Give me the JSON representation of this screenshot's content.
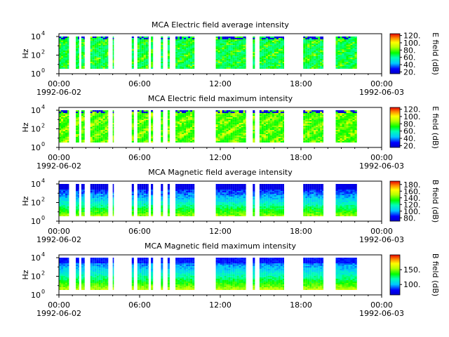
{
  "chart_data": [
    {
      "type": "heatmap",
      "title": "MCA  Electric field average intensity",
      "ylabel": "Hz",
      "yscale": "log",
      "ylim": [
        1,
        20000
      ],
      "y_ticks": [
        "10^0",
        "10^2",
        "10^4"
      ],
      "x_ticks": [
        "00:00",
        "06:00",
        "12:00",
        "18:00",
        "00:00"
      ],
      "x_dates": {
        "start": "1992-06-02",
        "end": "1992-06-03"
      },
      "xlim": [
        "1992-06-02T00:00",
        "1992-06-03T00:00"
      ],
      "colorbar": {
        "label": "E field (dB)",
        "range": [
          15,
          125
        ],
        "ticks": [
          20,
          40,
          60,
          80,
          100,
          120
        ],
        "tick_labels": [
          "20.",
          "40.",
          "60.",
          "80.",
          "100.",
          "120."
        ]
      },
      "colormap": "rainbow",
      "data_intervals": [
        [
          "00:00",
          "00:45"
        ],
        [
          "01:15",
          "01:30"
        ],
        [
          "01:40",
          "01:55"
        ],
        [
          "02:20",
          "03:40"
        ],
        [
          "04:00",
          "04:05"
        ],
        [
          "05:25",
          "05:35"
        ],
        [
          "05:50",
          "06:40"
        ],
        [
          "06:50",
          "07:00"
        ],
        [
          "07:35",
          "07:45"
        ],
        [
          "08:05",
          "08:15"
        ],
        [
          "08:40",
          "10:05"
        ],
        [
          "11:40",
          "13:55"
        ],
        [
          "14:25",
          "14:35"
        ],
        [
          "14:55",
          "16:45"
        ],
        [
          "18:10",
          "19:40"
        ],
        [
          "20:35",
          "22:10"
        ]
      ],
      "typical_level_db": [
        45,
        90
      ]
    },
    {
      "type": "heatmap",
      "title": "MCA  Electric field maximum intensity",
      "ylabel": "Hz",
      "yscale": "log",
      "ylim": [
        1,
        20000
      ],
      "y_ticks": [
        "10^0",
        "10^2",
        "10^4"
      ],
      "x_ticks": [
        "00:00",
        "06:00",
        "12:00",
        "18:00",
        "00:00"
      ],
      "x_dates": {
        "start": "1992-06-02",
        "end": "1992-06-03"
      },
      "xlim": [
        "1992-06-02T00:00",
        "1992-06-03T00:00"
      ],
      "colorbar": {
        "label": "E field (dB)",
        "range": [
          15,
          125
        ],
        "ticks": [
          20,
          40,
          60,
          80,
          100,
          120
        ],
        "tick_labels": [
          "20.",
          "40.",
          "60.",
          "80.",
          "100.",
          "120."
        ]
      },
      "colormap": "rainbow",
      "data_intervals": [
        [
          "00:00",
          "00:45"
        ],
        [
          "01:15",
          "01:30"
        ],
        [
          "01:40",
          "01:55"
        ],
        [
          "02:20",
          "03:40"
        ],
        [
          "04:00",
          "04:05"
        ],
        [
          "05:25",
          "05:35"
        ],
        [
          "05:50",
          "06:40"
        ],
        [
          "06:50",
          "07:00"
        ],
        [
          "07:35",
          "07:45"
        ],
        [
          "08:05",
          "08:15"
        ],
        [
          "08:40",
          "10:05"
        ],
        [
          "11:40",
          "13:55"
        ],
        [
          "14:25",
          "14:35"
        ],
        [
          "14:55",
          "16:45"
        ],
        [
          "18:10",
          "19:40"
        ],
        [
          "20:35",
          "22:10"
        ]
      ],
      "typical_level_db": [
        55,
        100
      ]
    },
    {
      "type": "heatmap",
      "title": "MCA  Magnetic field average intensity",
      "ylabel": "Hz",
      "yscale": "log",
      "ylim": [
        1,
        20000
      ],
      "y_ticks": [
        "10^0",
        "10^2",
        "10^4"
      ],
      "x_ticks": [
        "00:00",
        "06:00",
        "12:00",
        "18:00",
        "00:00"
      ],
      "x_dates": {
        "start": "1992-06-02",
        "end": "1992-06-03"
      },
      "xlim": [
        "1992-06-02T00:00",
        "1992-06-03T00:00"
      ],
      "colorbar": {
        "label": "B field (dB)",
        "range": [
          70,
          190
        ],
        "ticks": [
          80,
          100,
          120,
          140,
          160,
          180
        ],
        "tick_labels": [
          "80.",
          "100.",
          "120.",
          "140.",
          "160.",
          "180."
        ]
      },
      "colormap": "rainbow",
      "data_intervals": [
        [
          "00:00",
          "00:45"
        ],
        [
          "01:15",
          "01:30"
        ],
        [
          "01:40",
          "01:55"
        ],
        [
          "02:20",
          "03:40"
        ],
        [
          "04:00",
          "04:05"
        ],
        [
          "05:25",
          "05:35"
        ],
        [
          "05:50",
          "06:40"
        ],
        [
          "06:50",
          "07:00"
        ],
        [
          "07:35",
          "07:45"
        ],
        [
          "08:05",
          "08:15"
        ],
        [
          "08:40",
          "10:05"
        ],
        [
          "11:40",
          "13:55"
        ],
        [
          "14:25",
          "14:35"
        ],
        [
          "14:55",
          "16:45"
        ],
        [
          "18:10",
          "19:40"
        ],
        [
          "20:35",
          "22:10"
        ]
      ],
      "typical_level_db": [
        80,
        150
      ]
    },
    {
      "type": "heatmap",
      "title": "MCA  Magnetic field maximum intensity",
      "ylabel": "Hz",
      "yscale": "log",
      "ylim": [
        1,
        20000
      ],
      "y_ticks": [
        "10^0",
        "10^2",
        "10^4"
      ],
      "x_ticks": [
        "00:00",
        "06:00",
        "12:00",
        "18:00",
        "00:00"
      ],
      "x_dates": {
        "start": "1992-06-02",
        "end": "1992-06-03"
      },
      "xlim": [
        "1992-06-02T00:00",
        "1992-06-03T00:00"
      ],
      "colorbar": {
        "label": "B field (dB)",
        "range": [
          65,
          200
        ],
        "ticks": [
          100,
          150
        ],
        "tick_labels": [
          "100.",
          "150."
        ]
      },
      "colormap": "rainbow",
      "data_intervals": [
        [
          "00:00",
          "00:45"
        ],
        [
          "01:15",
          "01:30"
        ],
        [
          "01:40",
          "01:55"
        ],
        [
          "02:20",
          "03:40"
        ],
        [
          "04:00",
          "04:05"
        ],
        [
          "05:25",
          "05:35"
        ],
        [
          "05:50",
          "06:40"
        ],
        [
          "06:50",
          "07:00"
        ],
        [
          "07:35",
          "07:45"
        ],
        [
          "08:05",
          "08:15"
        ],
        [
          "08:40",
          "10:05"
        ],
        [
          "11:40",
          "13:55"
        ],
        [
          "14:25",
          "14:35"
        ],
        [
          "14:55",
          "16:45"
        ],
        [
          "18:10",
          "19:40"
        ],
        [
          "20:35",
          "22:10"
        ]
      ],
      "typical_level_db": [
        85,
        160
      ]
    }
  ]
}
